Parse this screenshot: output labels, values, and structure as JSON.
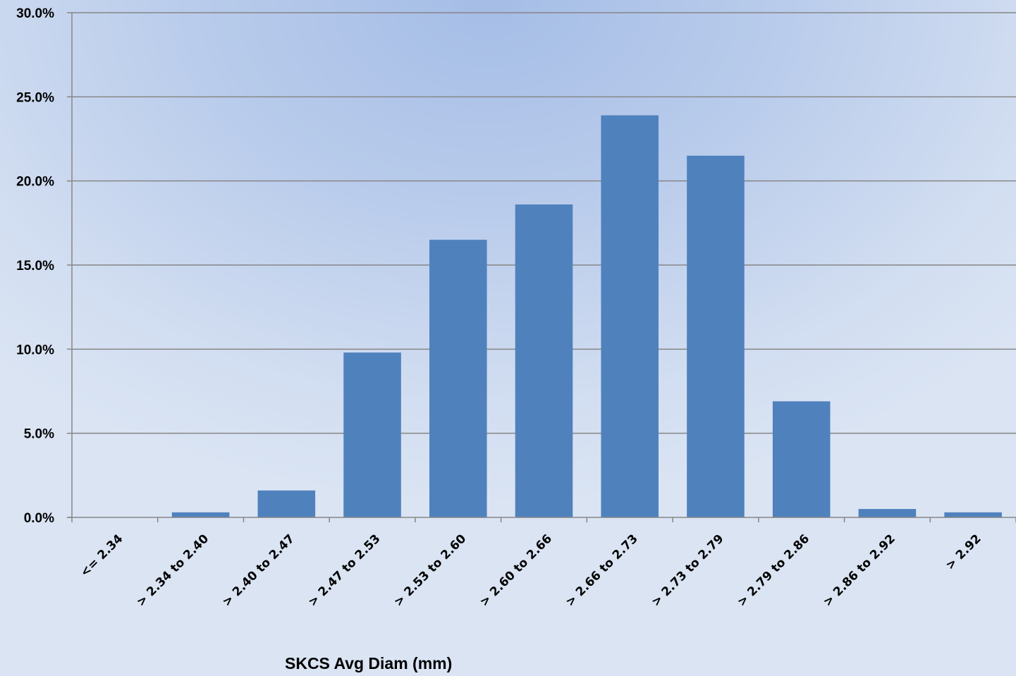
{
  "chart_data": {
    "type": "bar",
    "title": "",
    "xlabel": "SKCS Avg Diam (mm)",
    "ylabel": "",
    "categories": [
      "<= 2.34",
      "> 2.34 to 2.40",
      "> 2.40 to 2.47",
      "> 2.47 to 2.53",
      "> 2.53 to 2.60",
      "> 2.60 to 2.66",
      "> 2.66 to 2.73",
      "> 2.73 to 2.79",
      "> 2.79 to 2.86",
      "> 2.86 to 2.92",
      "> 2.92"
    ],
    "values": [
      0.0,
      0.3,
      1.6,
      9.8,
      16.5,
      18.6,
      23.9,
      21.5,
      6.9,
      0.5,
      0.3
    ],
    "ylim": [
      0,
      30
    ],
    "yticks": [
      0,
      5,
      10,
      15,
      20,
      25,
      30
    ],
    "ytick_labels": [
      "0.0%",
      "5.0%",
      "10.0%",
      "15.0%",
      "20.0%",
      "25.0%",
      "30.0%"
    ],
    "grid": true,
    "legend": "none",
    "colors": {
      "bar": "#4f81bd",
      "gridline": "#868686",
      "axis": "#868686"
    }
  }
}
